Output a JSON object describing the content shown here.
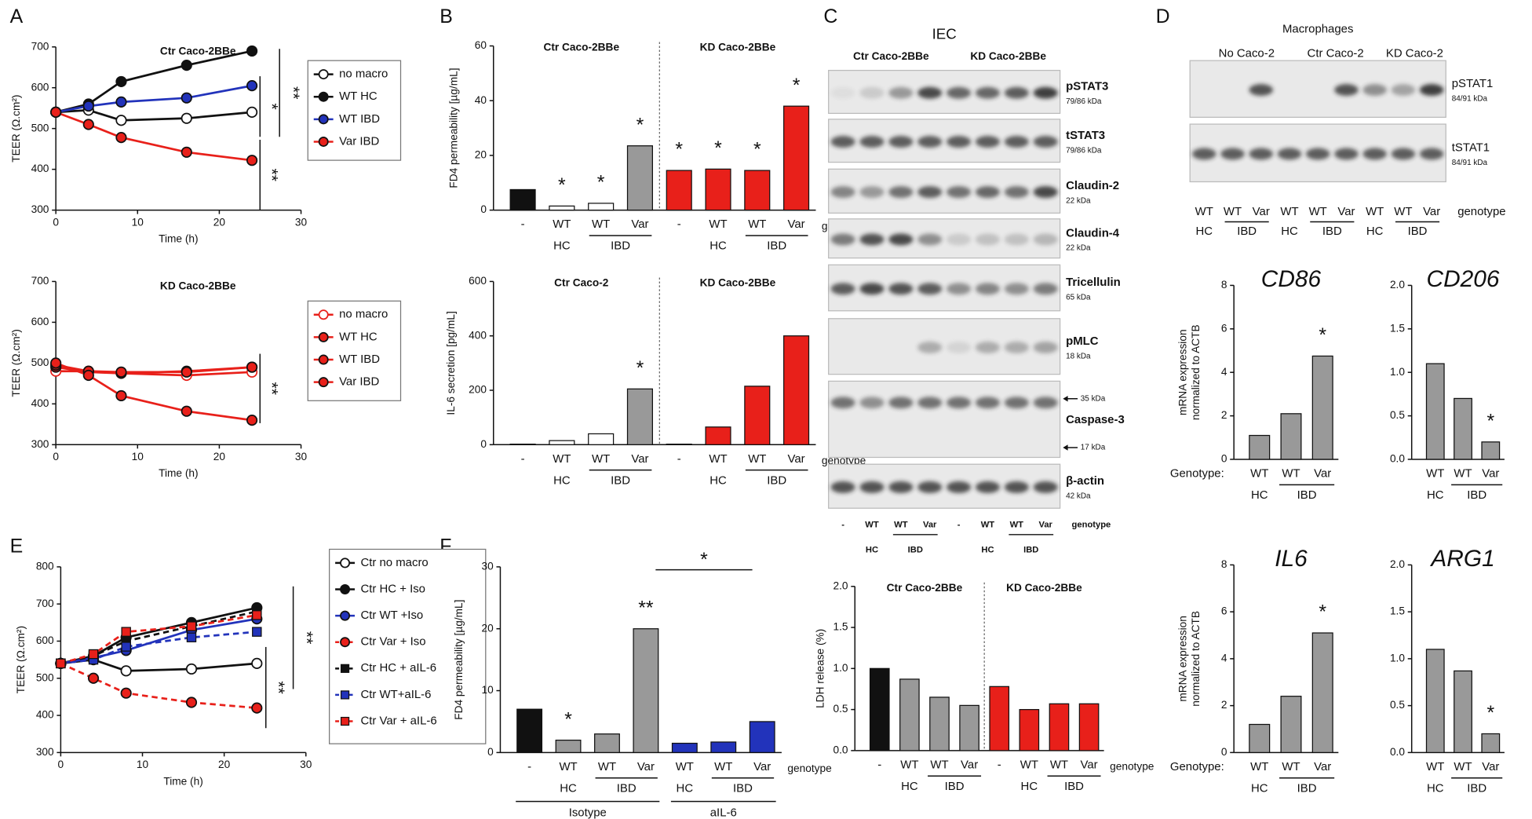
{
  "panels": [
    "A",
    "B",
    "C",
    "D",
    "E",
    "F"
  ],
  "chart_data": [
    {
      "type": "line",
      "title": "Ctr Caco-2BBe",
      "xlabel": "Time (h)",
      "ylabel": "TEER (Ω.cm²)",
      "x": [
        0,
        4,
        8,
        16,
        24
      ],
      "xlim": [
        0,
        30
      ],
      "xticks": [
        0,
        10,
        20,
        30
      ],
      "ylim": [
        300,
        700
      ],
      "yticks": [
        300,
        400,
        500,
        600,
        700
      ],
      "series": [
        {
          "name": "no macro",
          "color": "#111111",
          "marker": "open-circle",
          "dashed": false,
          "values": [
            540,
            545,
            520,
            525,
            540
          ]
        },
        {
          "name": "WT HC",
          "color": "#111111",
          "marker": "circle",
          "dashed": false,
          "values": [
            540,
            560,
            615,
            655,
            690
          ]
        },
        {
          "name": "WT IBD",
          "color": "#2233bb",
          "marker": "circle",
          "dashed": false,
          "values": [
            540,
            555,
            565,
            575,
            605
          ]
        },
        {
          "name": "Var IBD",
          "color": "#e8201a",
          "marker": "circle",
          "dashed": false,
          "values": [
            540,
            510,
            478,
            442,
            422
          ]
        }
      ],
      "annotations": [
        "**",
        "*",
        "**"
      ]
    },
    {
      "type": "line",
      "title": "KD Caco-2BBe",
      "xlabel": "Time (h)",
      "ylabel": "TEER (Ω.cm²)",
      "x": [
        0,
        4,
        8,
        16,
        24
      ],
      "xlim": [
        0,
        30
      ],
      "xticks": [
        0,
        10,
        20,
        30
      ],
      "ylim": [
        300,
        700
      ],
      "yticks": [
        300,
        400,
        500,
        600,
        700
      ],
      "series": [
        {
          "name": "no macro",
          "color": "#e8201a",
          "marker": "open-circle",
          "dashed": false,
          "values": [
            480,
            480,
            475,
            470,
            478
          ]
        },
        {
          "name": "WT HC",
          "color": "#e8201a",
          "marker": "circle",
          "dashed": false,
          "values": [
            490,
            478,
            475,
            480,
            490
          ]
        },
        {
          "name": "WT IBD",
          "color": "#e8201a",
          "marker": "circle",
          "dashed": false,
          "values": [
            495,
            480,
            478,
            478,
            490
          ]
        },
        {
          "name": "Var IBD",
          "color": "#e8201a",
          "marker": "circle",
          "dashed": false,
          "values": [
            500,
            470,
            420,
            382,
            360
          ]
        }
      ],
      "annotations": [
        "**"
      ]
    },
    {
      "type": "bar",
      "ylabel": "FD4 permeability [µg/mL]",
      "groups": [
        "Ctr Caco-2BBe",
        "KD Caco-2BBe"
      ],
      "xlabel": "genotype",
      "categories": [
        "-",
        "WT",
        "WT",
        "Var",
        "-",
        "WT",
        "WT",
        "Var"
      ],
      "conditions": [
        "HC",
        "IBD",
        "HC",
        "IBD"
      ],
      "values": [
        7.5,
        1.5,
        2.5,
        23.5,
        14.5,
        15,
        14.5,
        38
      ],
      "colors": [
        "#111111",
        "#ffffff",
        "#ffffff",
        "#999999",
        "#e8201a",
        "#e8201a",
        "#e8201a",
        "#e8201a"
      ],
      "stars": [
        null,
        "*",
        "*",
        "*",
        "*",
        "*",
        "*",
        "*"
      ],
      "ylim": [
        0,
        60
      ],
      "yticks": [
        0,
        20,
        40,
        60
      ]
    },
    {
      "type": "bar",
      "ylabel": "IL-6 secretion [pg/mL]",
      "groups": [
        "Ctr Caco-2",
        "KD Caco-2BBe"
      ],
      "xlabel": "genotype",
      "categories": [
        "-",
        "WT",
        "WT",
        "Var",
        "-",
        "WT",
        "WT",
        "Var"
      ],
      "conditions": [
        "HC",
        "IBD",
        "HC",
        "IBD"
      ],
      "values": [
        2,
        15,
        40,
        205,
        2,
        65,
        215,
        400
      ],
      "colors": [
        "#111111",
        "#ffffff",
        "#ffffff",
        "#999999",
        "#e8201a",
        "#e8201a",
        "#e8201a",
        "#e8201a"
      ],
      "stars": [
        null,
        null,
        null,
        "*",
        null,
        null,
        null,
        null
      ],
      "ylim": [
        0,
        600
      ],
      "yticks": [
        0,
        200,
        400,
        600
      ]
    },
    {
      "type": "bar",
      "ylabel": "LDH release (%)",
      "groups": [
        "Ctr Caco-2BBe",
        "KD Caco-2BBe"
      ],
      "xlabel": "genotype",
      "categories": [
        "-",
        "WT",
        "WT",
        "Var",
        "-",
        "WT",
        "WT",
        "Var"
      ],
      "conditions": [
        "HC",
        "IBD",
        "HC",
        "IBD"
      ],
      "values": [
        1.0,
        0.87,
        0.65,
        0.55,
        0.78,
        0.5,
        0.57,
        0.57
      ],
      "colors": [
        "#111111",
        "#999999",
        "#999999",
        "#999999",
        "#e8201a",
        "#e8201a",
        "#e8201a",
        "#e8201a"
      ],
      "ylim": [
        0,
        2
      ],
      "yticks": [
        {
          "value": 0,
          "label": "0.0"
        },
        0.5,
        {
          "value": 1,
          "label": "1.0"
        },
        1.5,
        {
          "value": 2,
          "label": "2.0"
        }
      ]
    },
    {
      "type": "bar",
      "title": "CD86",
      "ylabel": [
        "mRNA expression",
        "normalized to ACTB"
      ],
      "xlabel": "Genotype:",
      "categories": [
        "WT",
        "WT",
        "Var"
      ],
      "conditions": [
        "HC",
        "IBD"
      ],
      "values": [
        1.1,
        2.1,
        4.75
      ],
      "colors": [
        "#999999",
        "#999999",
        "#999999"
      ],
      "stars": [
        null,
        null,
        "*"
      ],
      "ylim": [
        0,
        8
      ],
      "yticks": [
        0,
        2,
        4,
        6,
        8
      ]
    },
    {
      "type": "bar",
      "title": "CD206",
      "categories": [
        "WT",
        "WT",
        "Var"
      ],
      "conditions": [
        "HC",
        "IBD"
      ],
      "values": [
        1.1,
        0.7,
        0.2
      ],
      "colors": [
        "#999999",
        "#999999",
        "#999999"
      ],
      "stars": [
        null,
        null,
        "*"
      ],
      "ylim": [
        0,
        2
      ],
      "yticks": [
        {
          "value": 0,
          "label": "0.0"
        },
        0.5,
        {
          "value": 1,
          "label": "1.0"
        },
        1.5,
        {
          "value": 2,
          "label": "2.0"
        }
      ]
    },
    {
      "type": "bar",
      "title": "IL6",
      "ylabel": [
        "mRNA expression",
        "normalized to ACTB"
      ],
      "xlabel": "Genotype:",
      "categories": [
        "WT",
        "WT",
        "Var"
      ],
      "conditions": [
        "HC",
        "IBD"
      ],
      "values": [
        1.2,
        2.4,
        5.1
      ],
      "colors": [
        "#999999",
        "#999999",
        "#999999"
      ],
      "stars": [
        null,
        null,
        "*"
      ],
      "ylim": [
        0,
        8
      ],
      "yticks": [
        0,
        2,
        4,
        6,
        8
      ]
    },
    {
      "type": "bar",
      "title": "ARG1",
      "categories": [
        "WT",
        "WT",
        "Var"
      ],
      "conditions": [
        "HC",
        "IBD"
      ],
      "values": [
        1.1,
        0.87,
        0.2
      ],
      "colors": [
        "#999999",
        "#999999",
        "#999999"
      ],
      "stars": [
        null,
        null,
        "*"
      ],
      "ylim": [
        0,
        2
      ],
      "yticks": [
        {
          "value": 0,
          "label": "0.0"
        },
        0.5,
        {
          "value": 1,
          "label": "1.0"
        },
        1.5,
        {
          "value": 2,
          "label": "2.0"
        }
      ]
    },
    {
      "type": "line",
      "xlabel": "Time (h)",
      "ylabel": "TEER (Ω.cm²)",
      "x": [
        0,
        4,
        8,
        16,
        24
      ],
      "xlim": [
        0,
        30
      ],
      "xticks": [
        0,
        10,
        20,
        30
      ],
      "ylim": [
        300,
        800
      ],
      "yticks": [
        300,
        400,
        500,
        600,
        700,
        800
      ],
      "series": [
        {
          "name": "Ctr no macro",
          "color": "#111111",
          "marker": "open-circle",
          "dashed": false,
          "values": [
            540,
            550,
            520,
            525,
            540
          ]
        },
        {
          "name": "Ctr HC + Iso",
          "color": "#111111",
          "marker": "circle",
          "dashed": false,
          "values": [
            540,
            560,
            610,
            650,
            690
          ]
        },
        {
          "name": "Ctr WT +Iso",
          "color": "#2233bb",
          "marker": "circle",
          "dashed": false,
          "values": [
            540,
            555,
            575,
            630,
            660
          ]
        },
        {
          "name": "Ctr Var + Iso",
          "color": "#e8201a",
          "marker": "circle",
          "dashed": true,
          "values": [
            540,
            500,
            460,
            435,
            420
          ]
        },
        {
          "name": "Ctr HC + aIL-6",
          "color": "#111111",
          "marker": "square",
          "dashed": true,
          "values": [
            540,
            560,
            600,
            640,
            680
          ]
        },
        {
          "name": "Ctr WT+aIL-6",
          "color": "#2233bb",
          "marker": "square",
          "dashed": true,
          "values": [
            540,
            550,
            585,
            610,
            625
          ]
        },
        {
          "name": "Ctr Var + aIL-6",
          "color": "#e8201a",
          "marker": "square",
          "dashed": true,
          "values": [
            540,
            565,
            625,
            640,
            670
          ]
        }
      ],
      "annotations": [
        "**",
        "**"
      ]
    },
    {
      "type": "bar",
      "ylabel": "FD4 permeability [µg/mL]",
      "xlabel": "genotype",
      "bottom_groups": [
        "Isotype",
        "aIL-6"
      ],
      "categories": [
        "-",
        "WT",
        "WT",
        "Var",
        "WT",
        "WT",
        "Var"
      ],
      "conditions": [
        "HC",
        "IBD",
        "HC",
        "IBD"
      ],
      "values": [
        7,
        2,
        3,
        20,
        1.5,
        1.7,
        5
      ],
      "colors": [
        "#111111",
        "#999999",
        "#999999",
        "#999999",
        "#2233bb",
        "#2233bb",
        "#2233bb"
      ],
      "stars": [
        null,
        "*",
        null,
        "**",
        null,
        null,
        null
      ],
      "bracket_label": "*",
      "ylim": [
        0,
        30
      ],
      "yticks": [
        0,
        10,
        20,
        30
      ]
    }
  ],
  "blots": [
    {
      "title": "IEC",
      "groups": [
        "Ctr Caco-2BBe",
        "KD Caco-2BBe"
      ],
      "bands": [
        {
          "label": "pSTAT3",
          "size": "79/86 kDa"
        },
        {
          "label": "tSTAT3",
          "size": "79/86 kDa"
        },
        {
          "label": "Claudin-2",
          "size": "22 kDa"
        },
        {
          "label": "Claudin-4",
          "size": "22 kDa"
        },
        {
          "label": "Tricellulin",
          "size": "65 kDa"
        },
        {
          "label": "pMLC",
          "size": "18 kDa"
        },
        {
          "label": "Caspase-3",
          "markers": [
            "35 kDa",
            "17 kDa"
          ]
        },
        {
          "label": "β-actin",
          "size": "42 kDa"
        }
      ],
      "lanes": [
        "-",
        "WT",
        "WT",
        "Var",
        "-",
        "WT",
        "WT",
        "Var"
      ],
      "conditions": [
        "HC",
        "IBD",
        "HC",
        "IBD"
      ],
      "lane_label": "genotype"
    },
    {
      "title": "Macrophages",
      "groups": [
        "No Caco-2",
        "Ctr Caco-2",
        "KD Caco-2"
      ],
      "bands": [
        {
          "label": "pSTAT1",
          "size": "84/91 kDa"
        },
        {
          "label": "tSTAT1",
          "size": "84/91 kDa"
        }
      ],
      "lanes": [
        "WT",
        "WT",
        "Var",
        "WT",
        "WT",
        "Var",
        "WT",
        "WT",
        "Var"
      ],
      "conditions": [
        "HC",
        "IBD",
        "HC",
        "IBD",
        "HC",
        "IBD"
      ],
      "lane_label": "genotype"
    }
  ]
}
